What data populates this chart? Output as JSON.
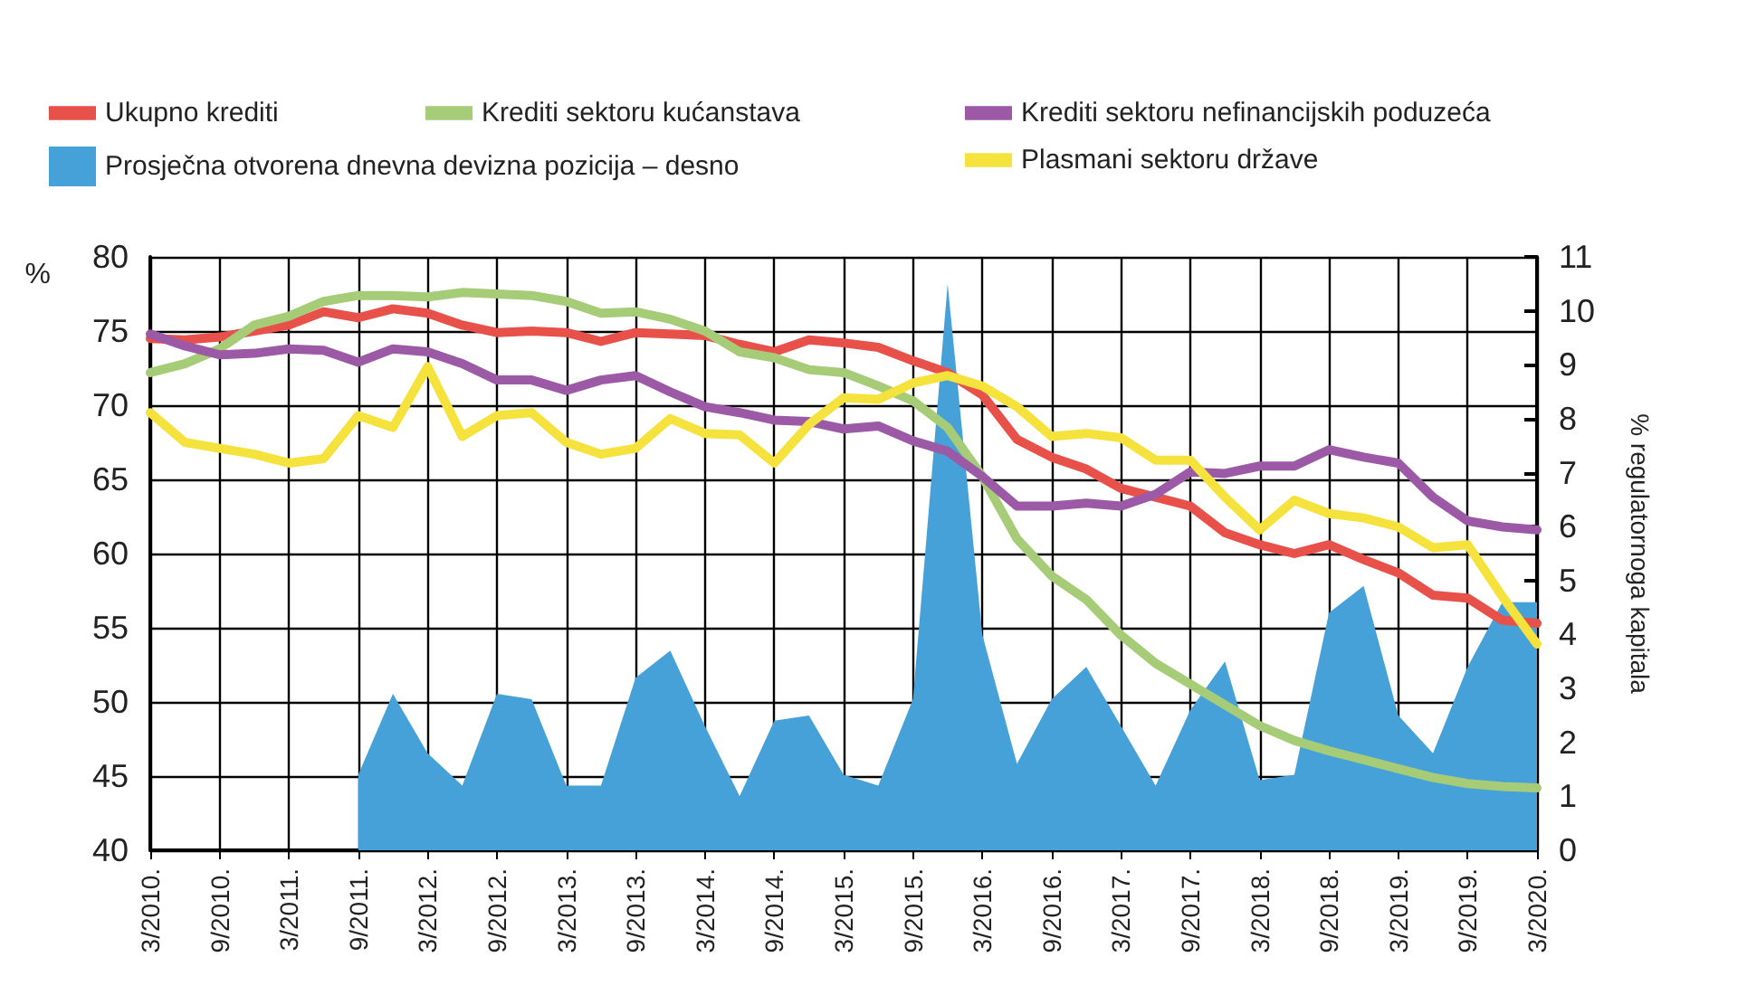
{
  "chart_data": {
    "type": "line",
    "ylabel": "%",
    "y2label": "% regulatornoga kapitala",
    "categories": [
      "3/2010.",
      null,
      "9/2010.",
      null,
      "3/2011.",
      null,
      "9/2011.",
      null,
      "3/2012.",
      null,
      "9/2012.",
      null,
      "3/2013.",
      null,
      "9/2013.",
      null,
      "3/2014.",
      null,
      "9/2014.",
      null,
      "3/2015.",
      null,
      "9/2015.",
      null,
      "3/2016.",
      null,
      "9/2016.",
      null,
      "3/2017.",
      null,
      "9/2017.",
      null,
      "3/2018.",
      null,
      "9/2018.",
      null,
      "3/2019.",
      null,
      "9/2019.",
      null,
      "3/2020."
    ],
    "series": [
      {
        "name": "Ukupno krediti",
        "color": "#e8504a",
        "values": [
          74.5,
          74.4,
          74.6,
          75.0,
          75.4,
          76.3,
          75.9,
          76.5,
          76.2,
          75.4,
          74.9,
          75.0,
          74.9,
          74.3,
          74.9,
          74.8,
          74.7,
          74.1,
          73.6,
          74.4,
          74.2,
          73.9,
          73.0,
          72.2,
          70.7,
          67.7,
          66.5,
          65.7,
          64.4,
          63.8,
          63.2,
          61.4,
          60.6,
          60.0,
          60.6,
          59.6,
          58.7,
          57.2,
          57.0,
          55.5,
          55.3
        ]
      },
      {
        "name": "Krediti sektoru kućanstava",
        "color": "#a6cc78",
        "values": [
          72.2,
          72.8,
          73.8,
          75.4,
          76.0,
          77.0,
          77.4,
          77.4,
          77.3,
          77.6,
          77.5,
          77.4,
          77.0,
          76.2,
          76.3,
          75.8,
          75.0,
          73.6,
          73.2,
          72.4,
          72.2,
          71.3,
          70.3,
          68.5,
          65.2,
          61.0,
          58.5,
          56.9,
          54.5,
          52.6,
          51.2,
          49.8,
          48.4,
          47.4,
          46.7,
          46.1,
          45.5,
          44.9,
          44.5,
          44.3,
          44.2
        ]
      },
      {
        "name": "Krediti sektoru nefinancijskih poduzeća",
        "color": "#9b59a6",
        "values": [
          74.8,
          74.0,
          73.4,
          73.5,
          73.8,
          73.7,
          72.9,
          73.8,
          73.6,
          72.8,
          71.7,
          71.7,
          71.0,
          71.7,
          72.0,
          70.9,
          69.9,
          69.5,
          69.0,
          68.9,
          68.4,
          68.6,
          67.6,
          66.9,
          65.2,
          63.2,
          63.2,
          63.4,
          63.2,
          64.0,
          65.5,
          65.4,
          65.9,
          65.9,
          67.0,
          66.5,
          66.1,
          63.8,
          62.2,
          61.8,
          61.6
        ]
      },
      {
        "name": "Prosječna otvorena dnevna devizna pozicija – desno",
        "type": "area",
        "axis": "y2",
        "color": "#45a1d8",
        "values": [
          null,
          null,
          null,
          null,
          null,
          null,
          1.4,
          2.9,
          1.8,
          1.2,
          2.9,
          2.8,
          1.2,
          1.2,
          3.2,
          3.7,
          2.3,
          1.0,
          2.4,
          2.5,
          1.4,
          1.2,
          2.8,
          10.5,
          4.0,
          1.6,
          2.8,
          3.4,
          2.3,
          1.2,
          2.6,
          3.5,
          1.3,
          1.4,
          4.4,
          4.9,
          2.5,
          1.8,
          3.4,
          4.6,
          4.6
        ]
      },
      {
        "name": "Plasmani sektoru države",
        "color": "#f5e23c",
        "values": [
          69.5,
          67.5,
          67.1,
          66.7,
          66.1,
          66.4,
          69.3,
          68.5,
          72.6,
          67.9,
          69.3,
          69.5,
          67.5,
          66.7,
          67.1,
          69.1,
          68.1,
          68.0,
          66.1,
          68.7,
          70.5,
          70.4,
          71.5,
          72.0,
          71.3,
          69.9,
          67.9,
          68.1,
          67.8,
          66.3,
          66.3,
          63.8,
          61.6,
          63.6,
          62.7,
          62.4,
          61.8,
          60.4,
          60.6,
          57.1,
          53.9
        ]
      }
    ],
    "ylim": [
      40,
      80
    ],
    "yticks": [
      40,
      45,
      50,
      55,
      60,
      65,
      70,
      75,
      80
    ],
    "y2lim": [
      0,
      11
    ],
    "y2ticks": [
      0,
      1,
      2,
      3,
      4,
      5,
      6,
      7,
      8,
      9,
      10,
      11
    ],
    "grid": true,
    "legend": "top left",
    "marker": "none",
    "line_style": "solid"
  }
}
